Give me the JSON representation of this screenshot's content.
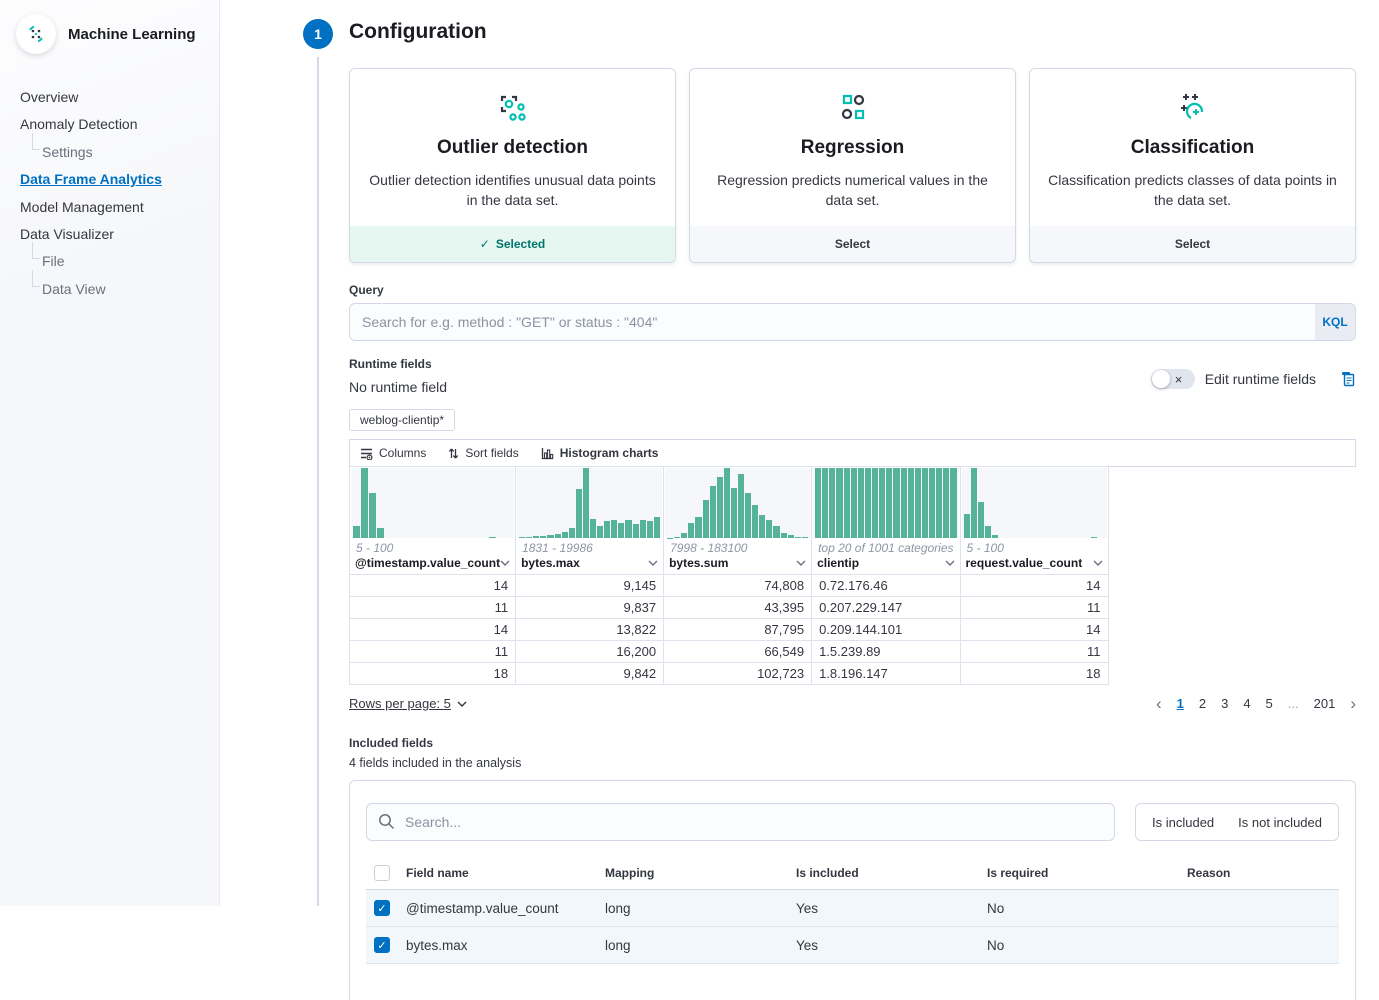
{
  "colors": {
    "accent_blue": "#0071c2",
    "hist_teal": "#54b399",
    "selected_teal": "#00756b",
    "border": "#d3dae6"
  },
  "sidebar": {
    "app_title": "Machine Learning",
    "items": [
      {
        "label": "Overview"
      },
      {
        "label": "Anomaly Detection"
      },
      {
        "label": "Settings"
      },
      {
        "label": "Data Frame Analytics"
      },
      {
        "label": "Model Management"
      },
      {
        "label": "Data Visualizer"
      },
      {
        "label": "File"
      },
      {
        "label": "Data View"
      }
    ],
    "active_item": "Data Frame Analytics"
  },
  "step": {
    "number": "1",
    "title": "Configuration"
  },
  "job_type_cards": [
    {
      "title": "Outlier detection",
      "description": "Outlier detection identifies unusual data points in the data set.",
      "action": "Selected",
      "selected": true
    },
    {
      "title": "Regression",
      "description": "Regression predicts numerical values in the data set.",
      "action": "Select",
      "selected": false
    },
    {
      "title": "Classification",
      "description": "Classification predicts classes of data points in the data set.",
      "action": "Select",
      "selected": false
    }
  ],
  "query": {
    "label": "Query",
    "placeholder": "Search for e.g. method : \"GET\" or status : \"404\"",
    "language_badge": "KQL"
  },
  "runtime_fields": {
    "label": "Runtime fields",
    "status": "No runtime field",
    "toggle_label": "Edit runtime fields"
  },
  "data_grid": {
    "index_chip": "weblog-clientip*",
    "toolbar": {
      "columns": "Columns",
      "sort": "Sort fields",
      "histograms": "Histogram charts"
    },
    "columns": [
      {
        "name": "@timestamp.value_count",
        "range": "5 - 100",
        "align": "right",
        "hist": [
          18,
          100,
          65,
          15,
          0,
          0,
          0,
          0,
          0,
          0,
          0,
          0,
          0,
          0,
          0,
          0,
          0,
          2,
          0,
          0
        ]
      },
      {
        "name": "bytes.max",
        "range": "1831 - 19986",
        "align": "right",
        "hist": [
          2,
          2,
          3,
          3,
          4,
          6,
          9,
          14,
          70,
          100,
          28,
          18,
          24,
          26,
          22,
          26,
          20,
          26,
          24,
          30
        ]
      },
      {
        "name": "bytes.sum",
        "range": "7998 - 183100",
        "align": "right",
        "hist": [
          1,
          2,
          8,
          22,
          30,
          55,
          75,
          88,
          100,
          72,
          92,
          65,
          48,
          33,
          26,
          18,
          8,
          4,
          2,
          2
        ]
      },
      {
        "name": "clientip",
        "range": "top 20 of 1001 categories",
        "align": "left",
        "hist": [
          100,
          100,
          100,
          100,
          100,
          100,
          100,
          100,
          100,
          100,
          100,
          100,
          100,
          100,
          100,
          100,
          100,
          100,
          100,
          100
        ]
      },
      {
        "name": "request.value_count",
        "range": "5 - 100",
        "align": "right",
        "hist": [
          35,
          100,
          52,
          17,
          4,
          0,
          0,
          0,
          0,
          0,
          0,
          0,
          0,
          0,
          0,
          0,
          0,
          0,
          2,
          0
        ]
      }
    ],
    "rows": [
      [
        "14",
        "9,145",
        "74,808",
        "0.72.176.46",
        "14"
      ],
      [
        "11",
        "9,837",
        "43,395",
        "0.207.229.147",
        "11"
      ],
      [
        "14",
        "13,822",
        "87,795",
        "0.209.144.101",
        "14"
      ],
      [
        "11",
        "16,200",
        "66,549",
        "1.5.239.89",
        "11"
      ],
      [
        "18",
        "9,842",
        "102,723",
        "1.8.196.147",
        "18"
      ]
    ],
    "pagination": {
      "rows_per_page": "Rows per page: 5",
      "pages": [
        "1",
        "2",
        "3",
        "4",
        "5",
        "...",
        "201"
      ],
      "active_page": "1"
    }
  },
  "included_fields": {
    "label": "Included fields",
    "summary": "4 fields included in the analysis",
    "search_placeholder": "Search...",
    "filters": [
      {
        "label": "Is included"
      },
      {
        "label": "Is not included"
      }
    ],
    "table": {
      "headers": [
        "Field name",
        "Mapping",
        "Is included",
        "Is required",
        "Reason"
      ],
      "rows": [
        {
          "field": "@timestamp.value_count",
          "mapping": "long",
          "is_included": "Yes",
          "is_required": "No",
          "reason": "",
          "checked": true
        },
        {
          "field": "bytes.max",
          "mapping": "long",
          "is_included": "Yes",
          "is_required": "No",
          "reason": "",
          "checked": true
        }
      ]
    }
  }
}
